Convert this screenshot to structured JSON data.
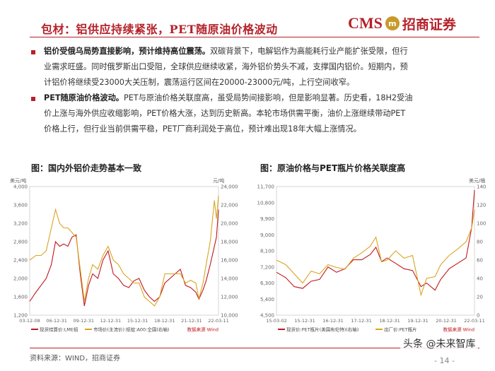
{
  "header": {
    "title": "包材：铝供应持续紧张，PET随原油价格波动",
    "logo_cms": "CMS",
    "logo_mark": "m",
    "logo_cn": "招商证券"
  },
  "paragraphs": [
    {
      "lead": "铝价受俄乌局势直接影响，预计维持高位震荡。",
      "lines": [
        "双碳背景下，电解铝作为高能耗行业产能扩张受限，但行",
        "业需求旺盛。同时俄罗斯出口受阻，全球供应继续收紧，海外铝价势头不减，支撑国内铝价。短期内，预",
        "计铝价将继续受23000大关压制，震荡运行区间在20000-23000元/吨，上行空间收窄。"
      ]
    },
    {
      "lead": "PET随原油价格波动。",
      "lines": [
        "PET与原油价格关联度高，虽受局势间接影响，但是影响显著。历史看，18H2受油",
        "价上涨与海外供应收缩影响，PET价格大涨，达到历史新高。本轮市场供需平衡，油价上涨继续带动PET",
        "价格上行，但行业当前供需平稳，PET厂商利润处于高位，预计难出现18年大幅上涨情况。"
      ]
    }
  ],
  "chart_left": {
    "heading": "图：国内外铝价走势基本一致",
    "chart_data": {
      "type": "line",
      "left_unit": "美元/吨",
      "right_unit": "元/吨",
      "yticks_left": [
        "4,000",
        "3,600",
        "3,200",
        "2,800",
        "2,400",
        "2,000",
        "1,600",
        "1,200"
      ],
      "yticks_right": [
        "24,000",
        "22,000",
        "20,000",
        "18,000",
        "16,000",
        "14,000",
        "12,000",
        "10,000"
      ],
      "xticks": [
        "03-12-08",
        "06-12-31",
        "09-12-31",
        "12-12-31",
        "15-12-31",
        "18-12-31",
        "21-12-31",
        "22-03-11"
      ],
      "x": [
        2003.9,
        2004.5,
        2005,
        2005.5,
        2006,
        2006.4,
        2006.8,
        2007.2,
        2007.6,
        2008,
        2008.4,
        2008.8,
        2009.2,
        2009.6,
        2010,
        2010.5,
        2011,
        2011.5,
        2012,
        2012.5,
        2013,
        2013.5,
        2014,
        2014.5,
        2015,
        2015.5,
        2016,
        2016.5,
        2017,
        2017.5,
        2018,
        2018.5,
        2019,
        2019.5,
        2020,
        2020.3,
        2020.7,
        2021,
        2021.4,
        2021.8,
        2022,
        2022.2
      ],
      "series": [
        {
          "name": "现货结算价:LME铝",
          "axis": "left",
          "color": "#c0171f",
          "values": [
            1500,
            1700,
            1850,
            2000,
            2300,
            2800,
            2700,
            2750,
            2700,
            2900,
            2950,
            2100,
            1400,
            1850,
            2100,
            2000,
            2400,
            2600,
            2100,
            2000,
            1850,
            1800,
            1950,
            2000,
            1750,
            1600,
            1500,
            1600,
            1900,
            2000,
            2100,
            2200,
            1850,
            1800,
            1700,
            1550,
            1750,
            1950,
            2300,
            2700,
            2900,
            3500
          ]
        },
        {
          "name": "市场价(主流价):铝锭:A00:全国(右轴)",
          "axis": "right",
          "color": "#d9a520",
          "values": [
            16000,
            16500,
            16500,
            17000,
            19500,
            21500,
            20000,
            19500,
            19500,
            19000,
            18500,
            15000,
            11500,
            14000,
            15500,
            15000,
            16500,
            17500,
            16000,
            15500,
            14500,
            14000,
            13500,
            13500,
            12000,
            11500,
            11000,
            12000,
            14500,
            14500,
            14500,
            14500,
            13500,
            13800,
            13500,
            11800,
            13500,
            15500,
            18000,
            22500,
            20500,
            23000
          ]
        }
      ],
      "source_note": "数据来源 Wind"
    }
  },
  "chart_right": {
    "heading": "图：原油价格与PET瓶片价格关联度高",
    "chart_data": {
      "type": "line",
      "left_unit": "",
      "right_unit": "美元/桶",
      "yticks_left": [
        "11,700",
        "10,800",
        "9,900",
        "9,000",
        "8,100",
        "7,200",
        "6,300",
        "5,400",
        "4,500"
      ],
      "yticks_right": [
        "140",
        "120",
        "100",
        "80",
        "60",
        "40",
        "20",
        "0"
      ],
      "xticks": [
        "15-03-02",
        "15-12-31",
        "16-12-31",
        "17-12-31",
        "18-12-31",
        "19-12-31",
        "20-12-31",
        "22-03-11"
      ],
      "x": [
        2015.17,
        2015.5,
        2015.8,
        2016.1,
        2016.4,
        2016.7,
        2017,
        2017.3,
        2017.6,
        2017.9,
        2018.2,
        2018.5,
        2018.7,
        2018.9,
        2019.1,
        2019.4,
        2019.7,
        2020,
        2020.3,
        2020.5,
        2020.8,
        2021,
        2021.3,
        2021.6,
        2021.9,
        2022.1,
        2022.2
      ],
      "series": [
        {
          "name": "现货价:PET瓶片(美国布伦特)(右轴)",
          "axis": "left",
          "color": "#c0171f",
          "values": [
            6900,
            6600,
            6100,
            6000,
            6400,
            6500,
            7200,
            6900,
            7100,
            7600,
            7600,
            7900,
            8300,
            7500,
            7700,
            7400,
            7100,
            7000,
            6100,
            6300,
            5900,
            6500,
            7100,
            7400,
            7700,
            9400,
            11500
          ]
        },
        {
          "name": "出厂价:PET瓶片",
          "axis": "right",
          "color": "#d9a520",
          "values": [
            60,
            55,
            45,
            35,
            48,
            45,
            55,
            52,
            50,
            62,
            68,
            75,
            85,
            58,
            60,
            70,
            62,
            65,
            22,
            40,
            42,
            55,
            65,
            72,
            80,
            95,
            115
          ]
        }
      ],
      "source_note": "数据来源 Wind"
    }
  },
  "footer": {
    "source": "资料来源：WIND，招商证券",
    "page": "- 14 -",
    "watermark": "头条 @未来智库"
  }
}
